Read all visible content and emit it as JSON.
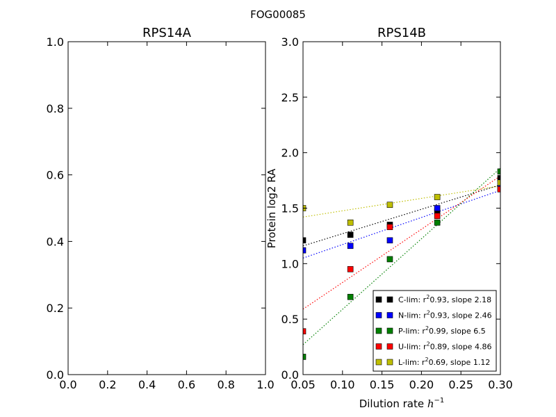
{
  "figure": {
    "title": "FOG00085"
  },
  "chart_data": [
    {
      "type": "scatter",
      "title": "RPS14A",
      "xlabel": "",
      "ylabel": "",
      "xlim": [
        0.0,
        1.0
      ],
      "ylim": [
        0.0,
        1.0
      ],
      "xticks": [
        "0.0",
        "0.2",
        "0.4",
        "0.6",
        "0.8",
        "1.0"
      ],
      "yticks": [
        "0.0",
        "0.2",
        "0.4",
        "0.6",
        "0.8",
        "1.0"
      ],
      "grid": false,
      "series": []
    },
    {
      "type": "scatter",
      "title": "RPS14B",
      "xlabel": "Dilution rate ",
      "xlabel_math": "h",
      "xlabel_sup": "−1",
      "ylabel": "Protein log2 RA",
      "xlim": [
        0.05,
        0.3
      ],
      "ylim": [
        0.0,
        3.0
      ],
      "xticks": [
        "0.05",
        "0.10",
        "0.15",
        "0.20",
        "0.25",
        "0.30"
      ],
      "yticks": [
        "0.0",
        "0.5",
        "1.0",
        "1.5",
        "2.0",
        "2.5",
        "3.0"
      ],
      "grid": false,
      "legend_position": "lower-right",
      "series": [
        {
          "name": "C-lim",
          "r2": "0.93",
          "slope": "2.18",
          "color": "#000000",
          "x": [
            0.05,
            0.11,
            0.16,
            0.22,
            0.3
          ],
          "y": [
            1.21,
            1.26,
            1.35,
            1.47,
            1.77
          ],
          "fit": [
            1.16,
            1.71
          ]
        },
        {
          "name": "N-lim",
          "r2": "0.93",
          "slope": "2.46",
          "color": "#0000ff",
          "x": [
            0.05,
            0.11,
            0.16,
            0.22,
            0.3
          ],
          "y": [
            1.12,
            1.16,
            1.21,
            1.5,
            1.68
          ],
          "fit": [
            1.05,
            1.66
          ]
        },
        {
          "name": "P-lim",
          "r2": "0.99",
          "slope": "6.5",
          "color": "#008000",
          "x": [
            0.05,
            0.11,
            0.16,
            0.22,
            0.3
          ],
          "y": [
            0.16,
            0.7,
            1.04,
            1.37,
            1.83
          ],
          "fit": [
            0.27,
            1.86
          ]
        },
        {
          "name": "U-lim",
          "r2": "0.89",
          "slope": "4.86",
          "color": "#ff0000",
          "x": [
            0.05,
            0.11,
            0.16,
            0.22,
            0.3
          ],
          "y": [
            0.39,
            0.95,
            1.33,
            1.43,
            1.67
          ],
          "fit": [
            0.59,
            1.79
          ]
        },
        {
          "name": "L-lim",
          "r2": "0.69",
          "slope": "1.12",
          "color": "#bfbf00",
          "x": [
            0.05,
            0.11,
            0.16,
            0.22,
            0.3
          ],
          "y": [
            1.5,
            1.37,
            1.53,
            1.6,
            1.73
          ],
          "fit": [
            1.42,
            1.7
          ]
        }
      ]
    }
  ]
}
